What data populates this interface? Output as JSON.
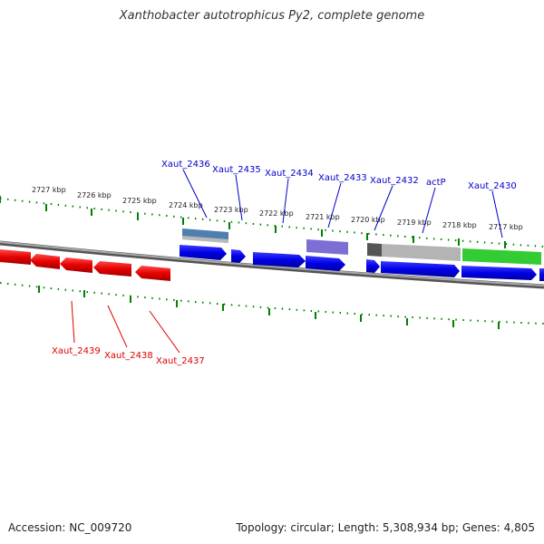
{
  "title": "Xanthobacter autotrophicus Py2, complete genome",
  "footer": {
    "accession": "Accession: NC_009720",
    "summary": "Topology: circular; Length: 5,308,934 bp; Genes: 4,805"
  },
  "kbp_labels": [
    "2727 kbp",
    "2726 kbp",
    "2725 kbp",
    "2724 kbp",
    "2723 kbp",
    "2722 kbp",
    "2721 kbp",
    "2720 kbp",
    "2719 kbp",
    "2718 kbp",
    "2717 kbp"
  ],
  "gene_labels_forward": [
    "Xaut_2436",
    "Xaut_2435",
    "Xaut_2434",
    "Xaut_2433",
    "Xaut_2432",
    "actP",
    "Xaut_2430"
  ],
  "gene_labels_reverse": [
    "Xaut_2439",
    "Xaut_2438",
    "Xaut_2437"
  ],
  "colors": {
    "forward_gene": "#0000e6",
    "reverse_gene": "#e60000",
    "tick": "#008000",
    "backbone": "#777777",
    "feature_steelblue": "#4f7fae",
    "feature_purple": "#7b6fd6",
    "feature_gray": "#b4b4b4",
    "feature_green": "#33cc33"
  }
}
